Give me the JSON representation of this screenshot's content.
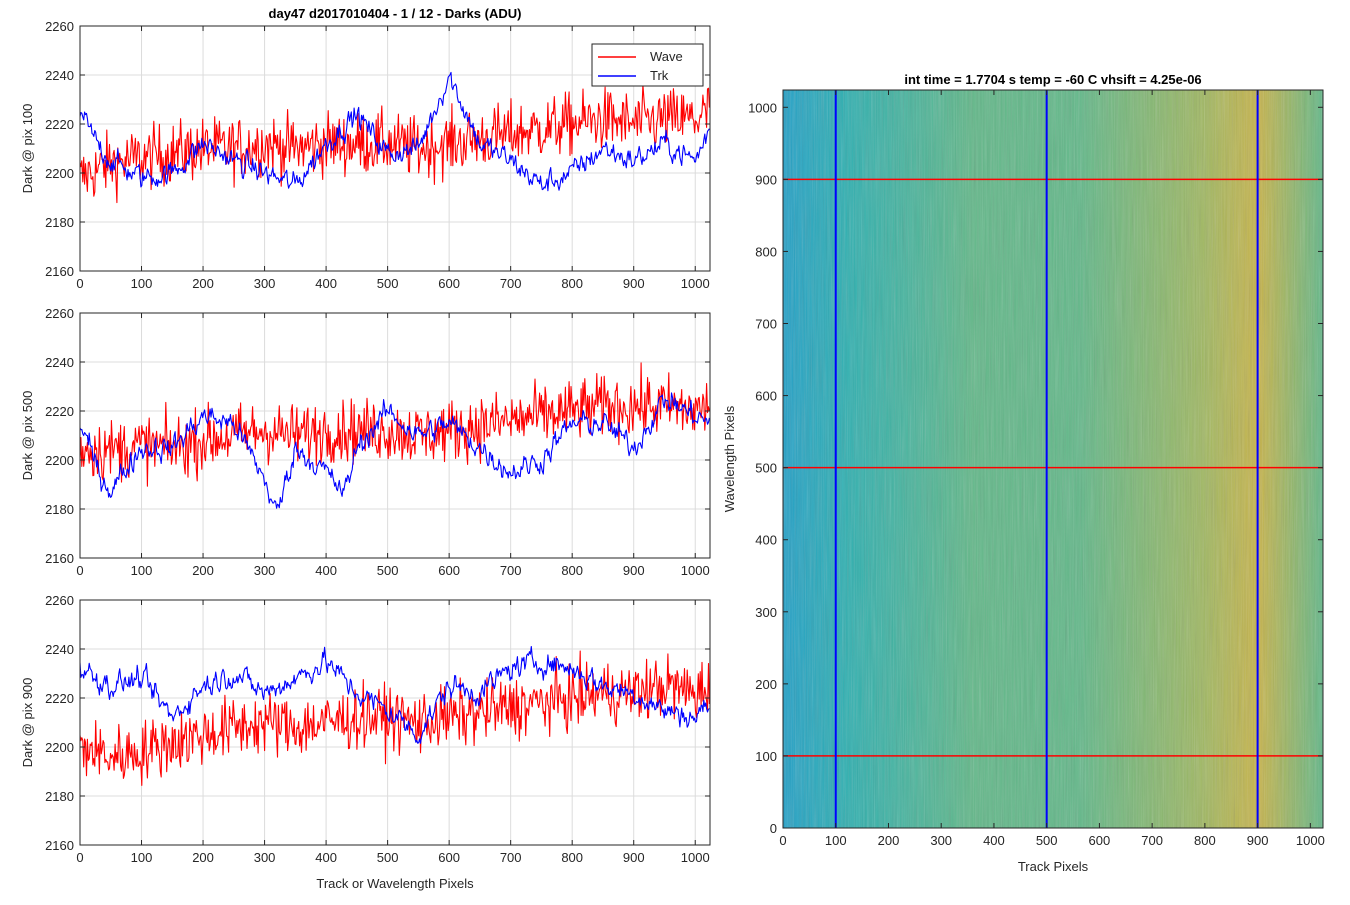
{
  "figure_title": "day47 d2017010404 - 1 / 12 - Darks (ADU)",
  "colors": {
    "wave": "#ff0000",
    "trk": "#0000ff",
    "grid": "#dcdcdc"
  },
  "chart_data": [
    {
      "type": "line",
      "ylabel": "Dark @ pix 100",
      "xlabel": "",
      "xlim": [
        0,
        1024
      ],
      "ylim": [
        2160,
        2260
      ],
      "xticks": [
        "0",
        "100",
        "200",
        "300",
        "400",
        "500",
        "600",
        "700",
        "800",
        "900",
        "1000"
      ],
      "yticks": [
        "2160",
        "2180",
        "2200",
        "2220",
        "2240",
        "2260"
      ],
      "grid": true,
      "legend": {
        "placement": "top-right",
        "entries": [
          "Wave",
          "Trk"
        ]
      },
      "series": [
        {
          "name": "Wave",
          "color": "#ff0000",
          "x": [
            0,
            50,
            100,
            150,
            200,
            250,
            300,
            350,
            400,
            450,
            500,
            550,
            600,
            650,
            700,
            750,
            800,
            850,
            900,
            950,
            1000,
            1024
          ],
          "values": [
            2198,
            2204,
            2206,
            2208,
            2210,
            2210,
            2212,
            2210,
            2212,
            2212,
            2212,
            2210,
            2212,
            2214,
            2216,
            2218,
            2220,
            2222,
            2220,
            2222,
            2222,
            2225
          ]
        },
        {
          "name": "Trk",
          "color": "#0000ff",
          "x": [
            0,
            20,
            50,
            100,
            150,
            200,
            250,
            300,
            350,
            400,
            450,
            500,
            550,
            600,
            650,
            700,
            750,
            800,
            850,
            900,
            950,
            1000,
            1024
          ],
          "values": [
            2225,
            2215,
            2205,
            2198,
            2200,
            2212,
            2205,
            2200,
            2195,
            2212,
            2224,
            2208,
            2210,
            2240,
            2212,
            2205,
            2195,
            2200,
            2210,
            2205,
            2212,
            2205,
            2218
          ]
        }
      ]
    },
    {
      "type": "line",
      "ylabel": "Dark @ pix 500",
      "xlabel": "",
      "xlim": [
        0,
        1024
      ],
      "ylim": [
        2160,
        2260
      ],
      "xticks": [
        "0",
        "100",
        "200",
        "300",
        "400",
        "500",
        "600",
        "700",
        "800",
        "900",
        "1000"
      ],
      "yticks": [
        "2160",
        "2180",
        "2200",
        "2220",
        "2240",
        "2260"
      ],
      "grid": true,
      "series": [
        {
          "name": "Wave",
          "color": "#ff0000",
          "x": [
            0,
            50,
            100,
            150,
            200,
            250,
            300,
            350,
            400,
            450,
            500,
            550,
            600,
            650,
            700,
            750,
            800,
            850,
            900,
            950,
            1000,
            1024
          ],
          "values": [
            2205,
            2204,
            2206,
            2205,
            2208,
            2210,
            2212,
            2210,
            2212,
            2212,
            2212,
            2210,
            2212,
            2214,
            2216,
            2218,
            2220,
            2222,
            2222,
            2222,
            2220,
            2222
          ]
        },
        {
          "name": "Trk",
          "color": "#0000ff",
          "x": [
            0,
            30,
            50,
            100,
            150,
            200,
            250,
            300,
            320,
            350,
            400,
            430,
            450,
            500,
            550,
            600,
            650,
            700,
            750,
            800,
            850,
            900,
            950,
            1000,
            1024
          ],
          "values": [
            2215,
            2195,
            2188,
            2205,
            2205,
            2218,
            2215,
            2192,
            2178,
            2205,
            2195,
            2186,
            2205,
            2220,
            2210,
            2215,
            2205,
            2195,
            2200,
            2215,
            2215,
            2205,
            2225,
            2218,
            2215
          ]
        }
      ]
    },
    {
      "type": "line",
      "ylabel": "Dark @ pix 900",
      "xlabel": "Track or Wavelength Pixels",
      "xlim": [
        0,
        1024
      ],
      "ylim": [
        2160,
        2260
      ],
      "xticks": [
        "0",
        "100",
        "200",
        "300",
        "400",
        "500",
        "600",
        "700",
        "800",
        "900",
        "1000"
      ],
      "yticks": [
        "2160",
        "2180",
        "2200",
        "2220",
        "2240",
        "2260"
      ],
      "grid": true,
      "series": [
        {
          "name": "Wave",
          "color": "#ff0000",
          "x": [
            0,
            50,
            100,
            150,
            200,
            250,
            300,
            350,
            400,
            450,
            500,
            550,
            600,
            650,
            700,
            750,
            800,
            850,
            900,
            950,
            1000,
            1024
          ],
          "values": [
            2200,
            2196,
            2198,
            2202,
            2205,
            2208,
            2210,
            2208,
            2210,
            2212,
            2212,
            2210,
            2212,
            2214,
            2216,
            2218,
            2220,
            2222,
            2222,
            2225,
            2222,
            2225
          ]
        },
        {
          "name": "Trk",
          "color": "#0000ff",
          "x": [
            0,
            50,
            100,
            150,
            200,
            250,
            300,
            350,
            400,
            450,
            500,
            550,
            600,
            650,
            700,
            750,
            800,
            850,
            900,
            950,
            1000,
            1024
          ],
          "values": [
            2232,
            2225,
            2228,
            2212,
            2225,
            2230,
            2222,
            2228,
            2235,
            2222,
            2215,
            2205,
            2225,
            2222,
            2232,
            2235,
            2232,
            2225,
            2222,
            2215,
            2212,
            2218
          ]
        }
      ]
    },
    {
      "type": "heatmap",
      "title": "int time = 1.7704 s    temp = -60 C    vhsift = 4.25e-06",
      "xlabel": "Track Pixels",
      "ylabel": "Wavelength Pixels",
      "xlim": [
        0,
        1024
      ],
      "ylim": [
        0,
        1024
      ],
      "xticks": [
        "0",
        "100",
        "200",
        "300",
        "400",
        "500",
        "600",
        "700",
        "800",
        "900",
        "1000"
      ],
      "yticks": [
        "0",
        "100",
        "200",
        "300",
        "400",
        "500",
        "600",
        "700",
        "800",
        "900",
        "1000"
      ],
      "colormap": [
        "#20a0c8",
        "#2cb0b0",
        "#60b888",
        "#a0b860",
        "#c8b448"
      ],
      "vertical_lines": {
        "color": "#0000ff",
        "x": [
          100,
          500,
          900
        ]
      },
      "horizontal_lines": {
        "color": "#ff0000",
        "y": [
          100,
          500,
          900
        ]
      }
    }
  ]
}
